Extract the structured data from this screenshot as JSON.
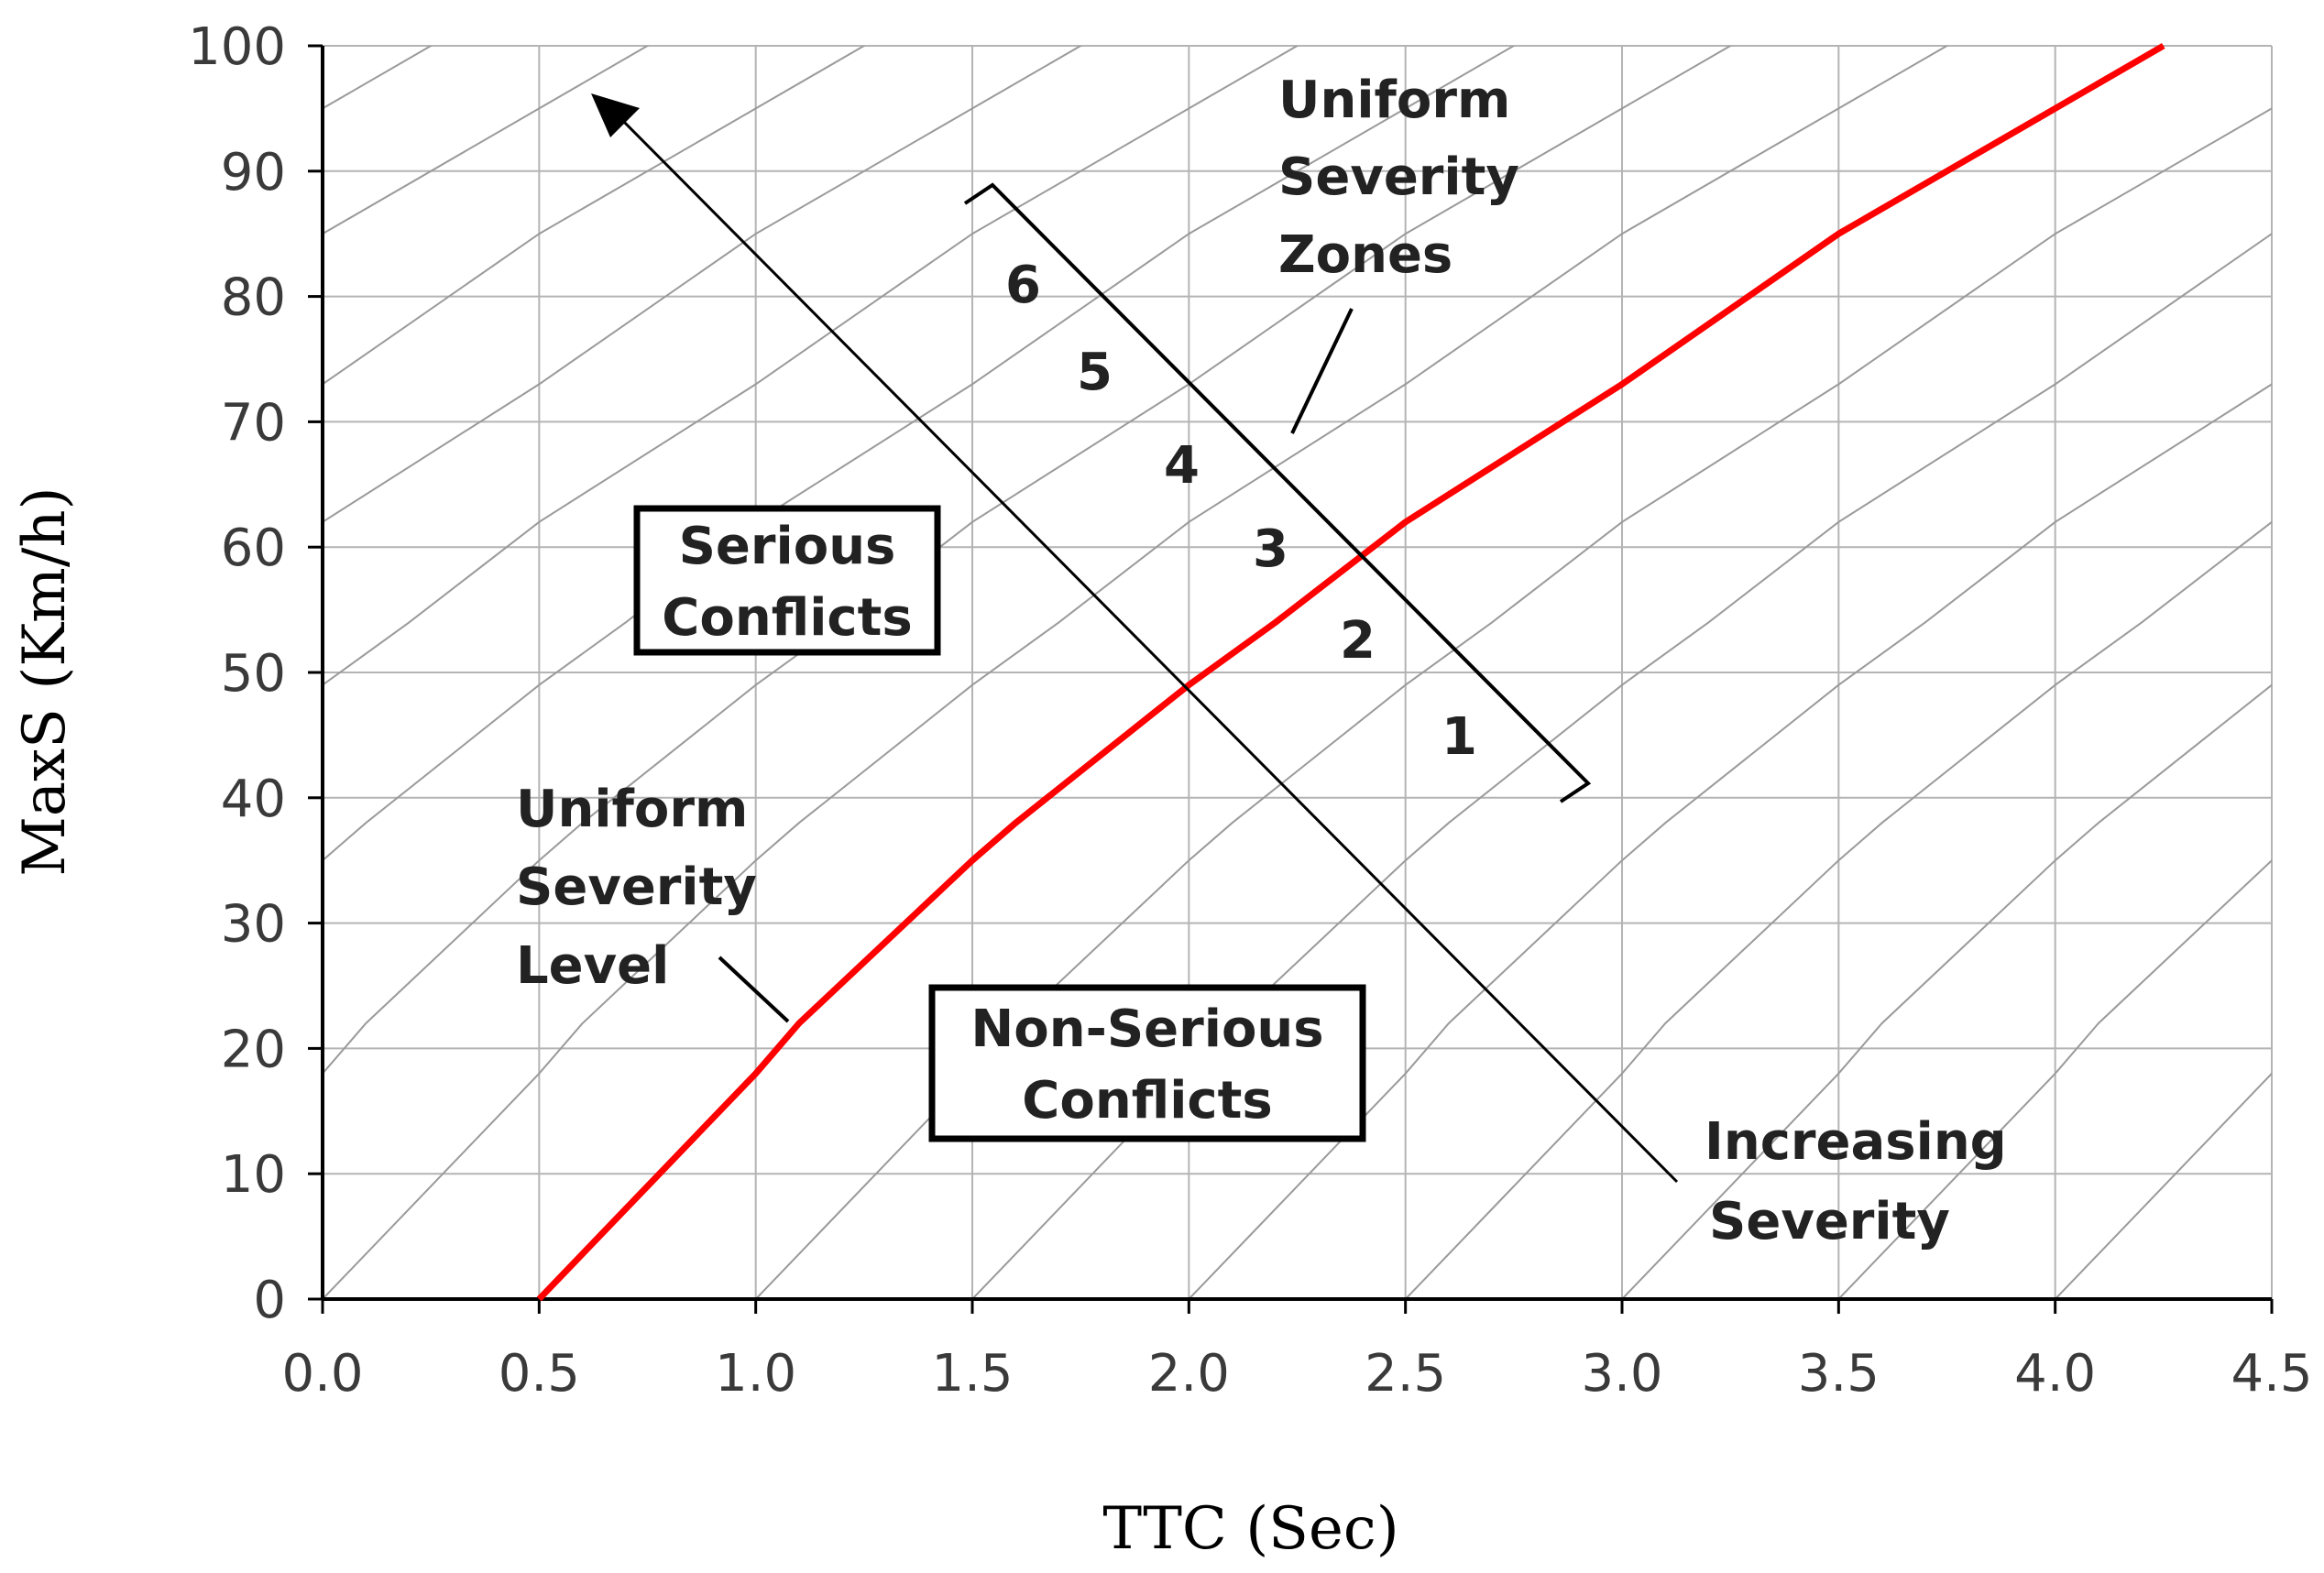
{
  "chart_data": {
    "type": "line",
    "xlabel": "TTC (Sec)",
    "ylabel": "MaxS (Km/h)",
    "xlim": [
      0,
      4.5
    ],
    "ylim": [
      0,
      100
    ],
    "x_ticks": [
      "0.0",
      "0.5",
      "1.0",
      "1.5",
      "2.0",
      "2.5",
      "3.0",
      "3.5",
      "4.0",
      "4.5"
    ],
    "y_ticks": [
      "0",
      "10",
      "20",
      "30",
      "40",
      "50",
      "60",
      "70",
      "80",
      "90",
      "100"
    ],
    "grid": true,
    "uniform_severity_curve": {
      "color": "#ff0000",
      "points": [
        [
          0.5,
          0
        ],
        [
          1.0,
          18
        ],
        [
          1.1,
          22
        ],
        [
          1.5,
          35
        ],
        [
          1.6,
          38
        ],
        [
          2.0,
          49
        ],
        [
          2.2,
          54
        ],
        [
          2.5,
          62
        ],
        [
          3.0,
          73
        ],
        [
          3.5,
          85
        ],
        [
          4.0,
          95
        ],
        [
          4.25,
          100
        ]
      ]
    },
    "background_curves": {
      "color": "#9a9a9a",
      "x_intercepts": [
        -3.5,
        -3.0,
        -2.5,
        -2.0,
        -1.5,
        -1.0,
        -0.5,
        0.0,
        0.5,
        1.0,
        1.5,
        2.0,
        2.5,
        3.0,
        3.5,
        4.0
      ]
    },
    "annotations": {
      "serious": [
        "Serious",
        "Conflicts"
      ],
      "non_serious": [
        "Non-Serious",
        "Conflicts"
      ],
      "zones_label": [
        "Uniform",
        "Severity",
        "Zones"
      ],
      "level_label": [
        "Uniform",
        "Severity",
        "Level"
      ],
      "increasing": [
        "Increasing",
        "Severity"
      ],
      "zone_numbers": [
        "6",
        "5",
        "4",
        "3",
        "2",
        "1"
      ]
    }
  }
}
